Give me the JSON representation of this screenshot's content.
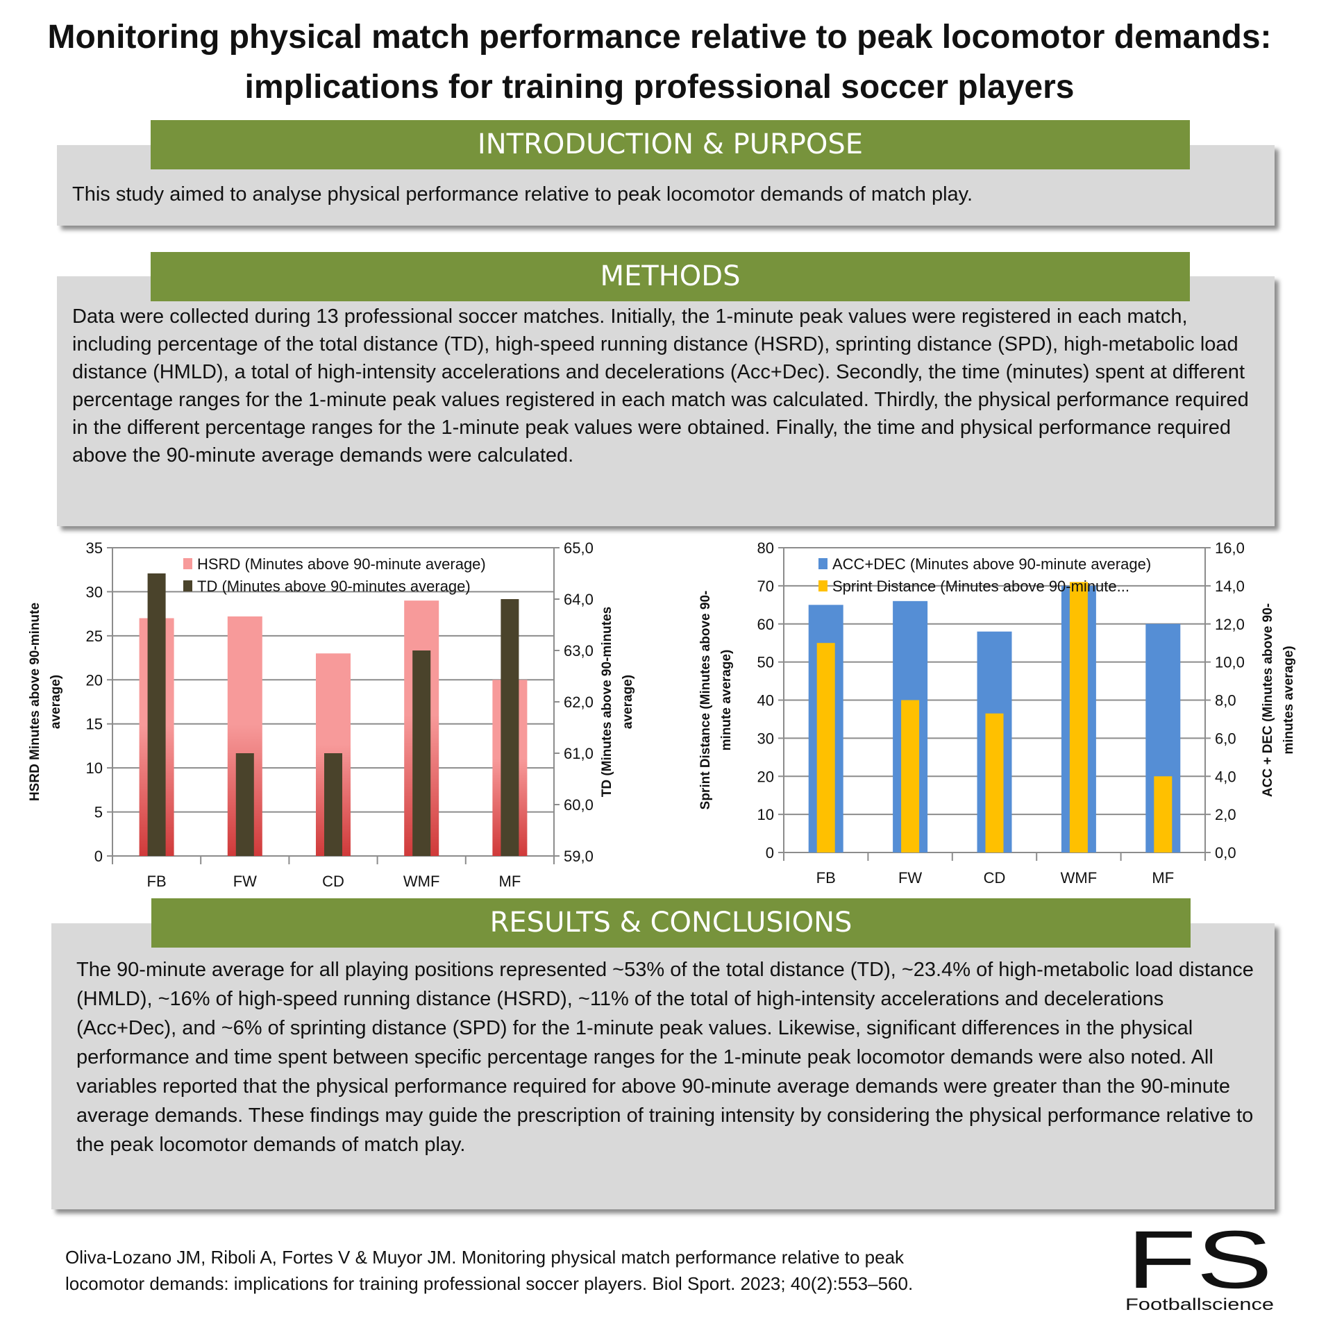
{
  "title": "Monitoring physical match performance relative to peak locomotor demands: implications for training professional soccer players",
  "introduction": {
    "heading": "INTRODUCTION & PURPOSE",
    "text": "This study aimed to analyse physical performance relative to peak locomotor demands of match play."
  },
  "methods": {
    "heading": "METHODS",
    "text": "Data were collected during 13 professional soccer matches. Initially, the 1-minute peak values were registered in each match, including percentage of the total distance (TD), high-speed running distance (HSRD), sprinting distance (SPD), high-metabolic load distance (HMLD), a total of high-intensity accelerations and decelerations (Acc+Dec). Secondly, the time (minutes) spent at different  percentage ranges for the 1-minute peak values registered in each match was calculated. Thirdly, the physical performance required in the different percentage ranges for the 1-minute peak values were obtained. Finally, the time and physical performance required above the 90-minute average demands were calculated."
  },
  "results": {
    "heading": "RESULTS & CONCLUSIONS",
    "text": "The 90-minute average for all playing positions represented ~53% of the total distance (TD), ~23.4% of high-metabolic load distance (HMLD), ~16% of high-speed running distance (HSRD), ~11% of the total of high-intensity accelerations and decelerations (Acc+Dec), and ~6% of sprinting distance (SPD) for the 1-minute peak values. Likewise, significant differences in the physical performance and time spent between specific percentage ranges for the 1-minute peak locomotor demands were also noted. All variables reported that the physical performance required for above 90-minute average demands were greater than the 90-minute average demands. These findings may guide the prescription of training intensity by considering the physical performance relative to the peak locomotor demands of match play."
  },
  "citation": {
    "line1": "Oliva-Lozano JM, Riboli A, Fortes V & Muyor JM. Monitoring physical match performance relative to peak",
    "line2": "locomotor demands: implications for training professional soccer players. Biol Sport. 2023; 40(2):553–560."
  },
  "logo": {
    "letters": "FS",
    "name": "Footballscience"
  },
  "colors": {
    "header_green": "#77933c",
    "box_gray": "#d9d9d9"
  },
  "chart_data": [
    {
      "type": "bar",
      "categories": [
        "FB",
        "FW",
        "CD",
        "WMF",
        "MF"
      ],
      "ylabel": "HSRD Minutes above 90-minute average)",
      "y2label": "TD (Minutes above 90-minutes average)",
      "ylim": [
        0,
        35
      ],
      "yticks": [
        "0",
        "5",
        "10",
        "15",
        "20",
        "25",
        "30",
        "35"
      ],
      "y2lim": [
        59,
        65
      ],
      "y2ticks": [
        "59,0",
        "60,0",
        "61,0",
        "62,0",
        "63,0",
        "64,0",
        "65,0"
      ],
      "grid": true,
      "legend_placement": "top",
      "series": [
        {
          "name": "HSRD (Minutes above 90-minute average)",
          "axis": "left",
          "values": [
            27,
            27.2,
            23,
            29,
            20
          ],
          "color": "#f79a9a",
          "color_bottom": "#d03a3a"
        },
        {
          "name": "TD (Minutes above 90-minutes average)",
          "axis": "right",
          "values": [
            64.5,
            61.0,
            61.0,
            63.0,
            64.0
          ],
          "color": "#4a432b"
        }
      ]
    },
    {
      "type": "bar",
      "categories": [
        "FB",
        "FW",
        "CD",
        "WMF",
        "MF"
      ],
      "ylabel": "Sprint Distance (Minutes above 90-minute average)",
      "y2label": "ACC + DEC (Minutes above 90-minutes average)",
      "ylim": [
        0,
        80
      ],
      "yticks": [
        "0",
        "10",
        "20",
        "30",
        "40",
        "50",
        "60",
        "70",
        "80"
      ],
      "y2lim": [
        0,
        16
      ],
      "y2ticks": [
        "0,0",
        "2,0",
        "4,0",
        "6,0",
        "8,0",
        "10,0",
        "12,0",
        "14,0",
        "16,0"
      ],
      "grid": true,
      "legend_placement": "top",
      "series": [
        {
          "name": "ACC+DEC (Minutes above 90-minute average)",
          "axis": "right",
          "values": [
            13.0,
            13.2,
            11.6,
            14.0,
            12.0
          ],
          "color": "#558ed5"
        },
        {
          "name": "Sprint Distance (Minutes above 90-minute...",
          "axis": "left",
          "values": [
            55,
            40,
            36.5,
            71,
            20
          ],
          "color": "#ffc000"
        }
      ]
    }
  ]
}
